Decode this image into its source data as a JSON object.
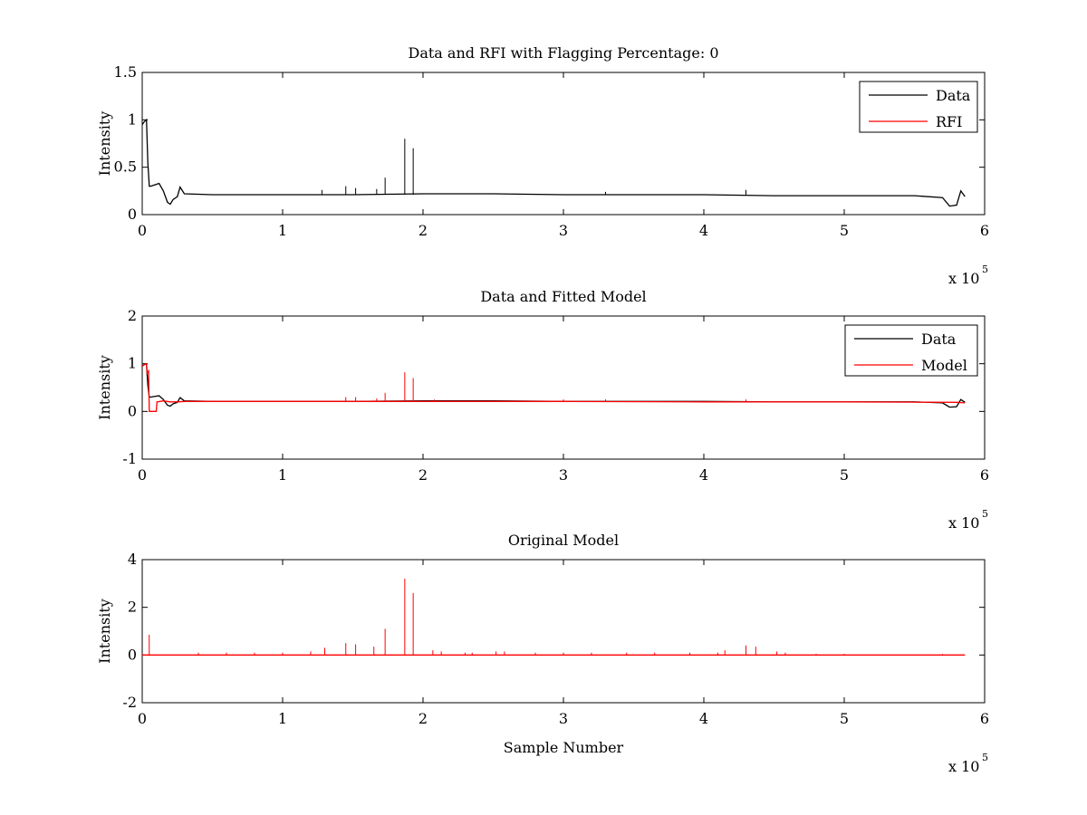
{
  "figure": {
    "background": "#ffffff",
    "axes_color": "#000000",
    "data_color": "#000000",
    "model_color": "#ff0000"
  },
  "chart_data": [
    {
      "type": "line",
      "title": "Data and RFI with Flagging Percentage: 0",
      "xlabel": "",
      "ylabel": "Intensity",
      "xlim": [
        0,
        600000
      ],
      "ylim": [
        0,
        1.5
      ],
      "x_ticks": [
        0,
        1,
        2,
        3,
        4,
        5,
        6
      ],
      "y_ticks": [
        "0",
        "0.5",
        "1",
        "1.5"
      ],
      "y_tick_values": [
        0,
        0.5,
        1,
        1.5
      ],
      "x_multiplier": {
        "base": "x 10",
        "exponent": "5"
      },
      "grid": false,
      "legend": {
        "placement": "top-right",
        "entries": [
          {
            "label": "Data",
            "color": "#000000"
          },
          {
            "label": "RFI",
            "color": "#ff0000"
          }
        ]
      },
      "series": [
        {
          "name": "Data",
          "color": "#000000",
          "x": [
            0,
            1500,
            3000,
            4000,
            5000,
            6000,
            8000,
            12000,
            15000,
            18000,
            20000,
            22000,
            25000,
            27000,
            30000,
            50000,
            100000,
            150000,
            200000,
            250000,
            300000,
            350000,
            400000,
            450000,
            500000,
            550000,
            570000,
            575000,
            580000,
            583000,
            586000
          ],
          "y": [
            0.95,
            0.98,
            1.0,
            0.55,
            0.3,
            0.3,
            0.31,
            0.33,
            0.25,
            0.13,
            0.11,
            0.16,
            0.19,
            0.29,
            0.22,
            0.21,
            0.21,
            0.21,
            0.22,
            0.22,
            0.21,
            0.21,
            0.21,
            0.2,
            0.2,
            0.2,
            0.18,
            0.09,
            0.1,
            0.25,
            0.19
          ]
        },
        {
          "name": "RFI",
          "color": "#ff0000",
          "x": [],
          "y": []
        }
      ],
      "spikes": {
        "series": "Data",
        "x": [
          128000,
          145000,
          152000,
          167000,
          173000,
          187000,
          193000,
          330000,
          430000
        ],
        "y": [
          0.26,
          0.3,
          0.28,
          0.27,
          0.39,
          0.8,
          0.7,
          0.24,
          0.26
        ]
      }
    },
    {
      "type": "line",
      "title": "Data and Fitted Model",
      "xlabel": "",
      "ylabel": "Intensity",
      "xlim": [
        0,
        600000
      ],
      "ylim": [
        -1,
        2
      ],
      "x_ticks": [
        0,
        1,
        2,
        3,
        4,
        5,
        6
      ],
      "y_ticks": [
        "-1",
        "0",
        "1",
        "2"
      ],
      "y_tick_values": [
        -1,
        0,
        1,
        2
      ],
      "x_multiplier": {
        "base": "x 10",
        "exponent": "5"
      },
      "grid": false,
      "legend": {
        "placement": "top-right",
        "entries": [
          {
            "label": "Data",
            "color": "#000000"
          },
          {
            "label": "Model",
            "color": "#ff0000"
          }
        ]
      },
      "series": [
        {
          "name": "Data",
          "color": "#000000",
          "x": [
            0,
            1500,
            3000,
            4000,
            5000,
            6000,
            8000,
            12000,
            15000,
            18000,
            20000,
            22000,
            25000,
            27000,
            30000,
            50000,
            100000,
            150000,
            200000,
            250000,
            300000,
            350000,
            400000,
            450000,
            500000,
            550000,
            570000,
            575000,
            580000,
            583000,
            586000
          ],
          "y": [
            0.95,
            0.98,
            1.0,
            0.55,
            0.3,
            0.3,
            0.31,
            0.33,
            0.25,
            0.13,
            0.11,
            0.16,
            0.19,
            0.29,
            0.22,
            0.21,
            0.21,
            0.21,
            0.22,
            0.22,
            0.21,
            0.21,
            0.21,
            0.2,
            0.2,
            0.2,
            0.18,
            0.09,
            0.1,
            0.25,
            0.19
          ]
        },
        {
          "name": "Model",
          "color": "#ff0000",
          "x": [
            0,
            1500,
            3000,
            3500,
            4500,
            5000,
            5500,
            10000,
            10500,
            15000,
            20000,
            25000,
            30000,
            100000,
            200000,
            300000,
            400000,
            500000,
            580000,
            586000
          ],
          "y": [
            0.95,
            0.98,
            1.0,
            0.8,
            0.85,
            0.0,
            0.0,
            0.0,
            0.2,
            0.22,
            0.2,
            0.2,
            0.21,
            0.21,
            0.21,
            0.21,
            0.2,
            0.2,
            0.19,
            0.18
          ]
        }
      ],
      "spikes": {
        "series": "Model",
        "x": [
          145000,
          152000,
          167000,
          173000,
          187000,
          193000,
          208000,
          300000,
          330000,
          430000
        ],
        "y": [
          0.3,
          0.3,
          0.27,
          0.39,
          0.82,
          0.7,
          0.25,
          0.25,
          0.25,
          0.25
        ]
      }
    },
    {
      "type": "line",
      "title": "Original Model",
      "xlabel": "Sample Number",
      "ylabel": "Intensity",
      "xlim": [
        0,
        600000
      ],
      "ylim": [
        -2,
        4
      ],
      "x_ticks": [
        0,
        1,
        2,
        3,
        4,
        5,
        6
      ],
      "y_ticks": [
        "-2",
        "0",
        "2",
        "4"
      ],
      "y_tick_values": [
        -2,
        0,
        2,
        4
      ],
      "x_multiplier": {
        "base": "x 10",
        "exponent": "5"
      },
      "grid": false,
      "series": [
        {
          "name": "Model",
          "color": "#ff0000",
          "x": [
            0,
            586000
          ],
          "y": [
            0,
            0
          ]
        }
      ],
      "spikes": {
        "series": "Model",
        "x": [
          5000,
          40000,
          60000,
          80000,
          100000,
          120000,
          130000,
          145000,
          152000,
          165000,
          173000,
          187000,
          193000,
          207000,
          213000,
          230000,
          235000,
          252000,
          258000,
          280000,
          300000,
          320000,
          345000,
          365000,
          390000,
          410000,
          415000,
          430000,
          437000,
          452000,
          458000,
          480000,
          500000,
          570000
        ],
        "y": [
          0.85,
          0.1,
          0.1,
          0.1,
          0.1,
          0.15,
          0.3,
          0.5,
          0.45,
          0.35,
          1.1,
          3.2,
          2.6,
          0.2,
          0.15,
          0.1,
          0.1,
          0.15,
          0.15,
          0.1,
          0.1,
          0.1,
          0.1,
          0.1,
          0.1,
          0.1,
          0.2,
          0.4,
          0.35,
          0.15,
          0.1,
          0.05,
          0.05,
          0.05
        ]
      }
    }
  ]
}
